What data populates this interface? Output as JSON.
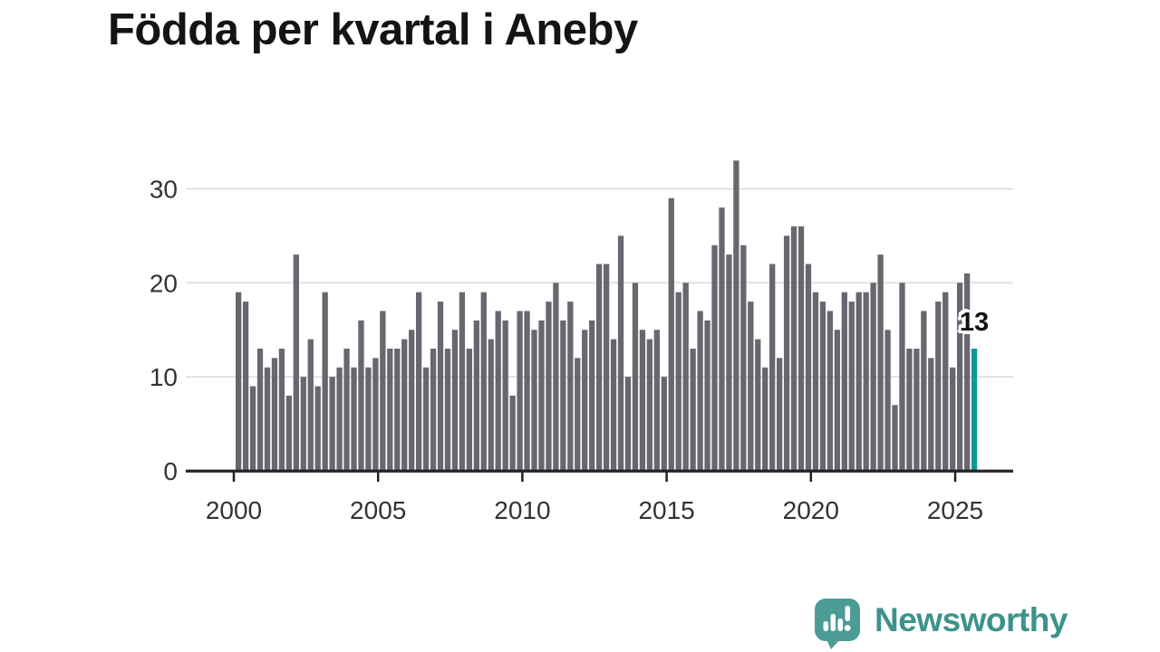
{
  "title": "Födda per kvartal i Aneby",
  "logo": {
    "wordmark": "Newsworthy"
  },
  "colors": {
    "bar": "#67676f",
    "accent": "#099c95",
    "grid": "#e2e2e2",
    "axis": "#222222",
    "tick_text": "#333333",
    "title_text": "#141414",
    "logo_icon": "#4c9c96",
    "logo_text": "#3c938c",
    "annotation_text": "#111111",
    "annotation_halo": "#ffffff"
  },
  "chart_data": {
    "type": "bar",
    "title": "Födda per kvartal i Aneby",
    "frequency": "quarterly",
    "x_start": "2000-Q1",
    "x_end": "2025-Q3",
    "xticks": [
      2000,
      2005,
      2010,
      2015,
      2020,
      2025
    ],
    "yticks": [
      0,
      10,
      20,
      30
    ],
    "ylim": [
      0,
      34
    ],
    "grid": "horizontal",
    "legend": "none",
    "highlight": {
      "index": 102,
      "x": "2025-Q3",
      "value": 13,
      "label": "13"
    },
    "values": [
      19,
      18,
      9,
      13,
      11,
      12,
      13,
      8,
      23,
      10,
      14,
      9,
      19,
      10,
      11,
      13,
      11,
      16,
      11,
      12,
      17,
      13,
      13,
      14,
      15,
      19,
      11,
      13,
      18,
      13,
      15,
      19,
      13,
      16,
      19,
      14,
      17,
      16,
      8,
      17,
      17,
      15,
      16,
      18,
      20,
      16,
      18,
      12,
      15,
      16,
      22,
      22,
      14,
      25,
      10,
      20,
      15,
      14,
      15,
      10,
      29,
      19,
      20,
      13,
      17,
      16,
      24,
      28,
      23,
      33,
      24,
      18,
      14,
      11,
      22,
      12,
      25,
      26,
      26,
      22,
      19,
      18,
      17,
      15,
      19,
      18,
      19,
      19,
      20,
      23,
      15,
      7,
      20,
      13,
      13,
      17,
      12,
      18,
      19,
      11,
      20,
      21,
      13
    ]
  }
}
